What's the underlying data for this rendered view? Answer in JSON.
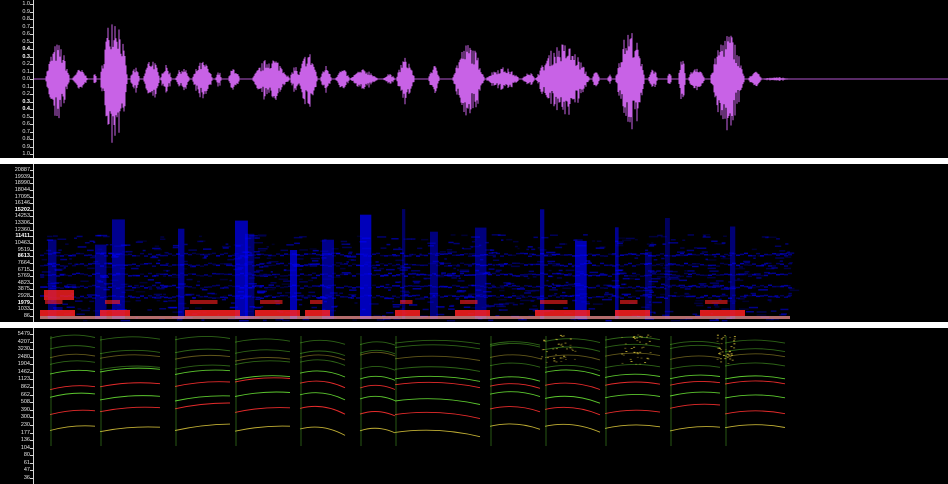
{
  "waveform": {
    "color": "#c862e6",
    "amplitude_labels": [
      "1.0",
      "0.9",
      "0.8",
      "0.7",
      "0.6",
      "0.5",
      "0.4",
      "0.3",
      "0.2",
      "0.1",
      "0.0",
      "0.1",
      "0.2",
      "0.3",
      "0.4",
      "0.5",
      "0.6",
      "0.7",
      "0.8",
      "0.9",
      "1.0"
    ]
  },
  "spectrogram": {
    "colors": [
      "#0000ff",
      "#ff2020",
      "#ff9a9a"
    ],
    "frequency_labels": [
      "20887",
      "19939",
      "18990",
      "18044",
      "17095",
      "16146",
      "15202",
      "14253",
      "13306",
      "12360",
      "11411",
      "10463",
      "9519",
      "8613",
      "7664",
      "6715",
      "5769",
      "4823",
      "3875",
      "2928",
      "1979",
      "1033",
      "86"
    ],
    "emphasized": [
      "15202",
      "11411",
      "8613",
      "1979"
    ]
  },
  "pitch": {
    "colors": [
      "#ff3030",
      "#66dd33",
      "#d6c23a"
    ],
    "frequency_labels": [
      "5479",
      "4207",
      "3230",
      "2480",
      "1904",
      "1462",
      "1123",
      "862",
      "662",
      "508",
      "390",
      "300",
      "230",
      "177",
      "136",
      "104",
      "80",
      "61",
      "47",
      "36"
    ]
  }
}
